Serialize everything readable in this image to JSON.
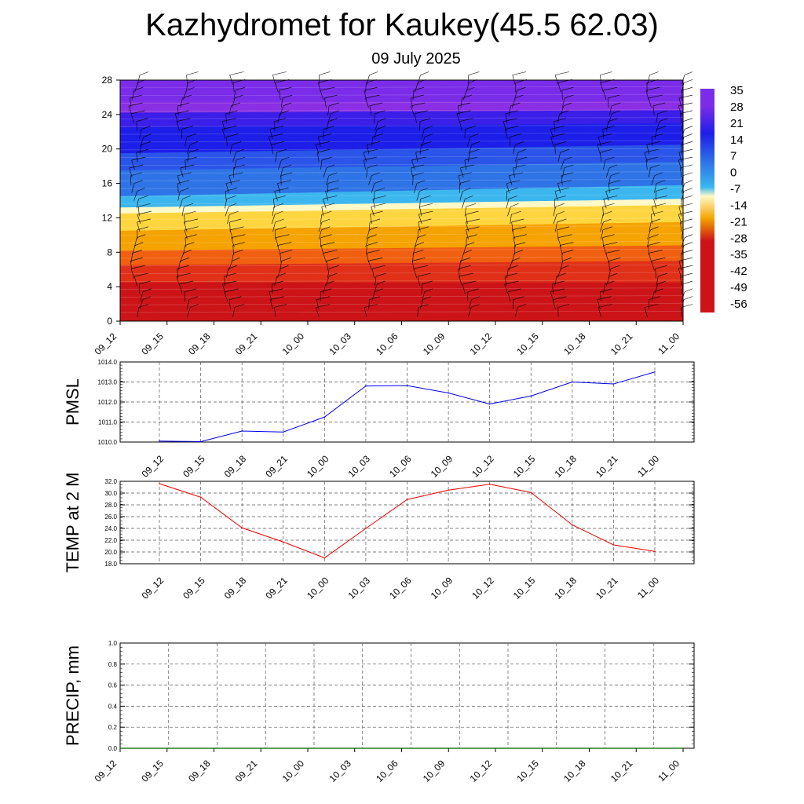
{
  "title": "Kazhydromet for Kaukey(45.5 62.03)",
  "subtitle": "09 July 2025",
  "chart_data": [
    {
      "type": "heatmap",
      "description_role": "vertical cross-section of temperature with wind barbs",
      "x_ticks": [
        "09_12",
        "09_15",
        "09_18",
        "09_21",
        "10_00",
        "10_03",
        "10_06",
        "10_09",
        "10_12",
        "10_15",
        "10_18",
        "10_21",
        "11_00"
      ],
      "y_ticks": [
        0,
        4,
        8,
        12,
        16,
        20,
        24,
        28
      ],
      "ylim": [
        0,
        28
      ],
      "colorbar_labels": [
        "35",
        "28",
        "21",
        "14",
        "7",
        "0",
        "-7",
        "-14",
        "-21",
        "-28",
        "-35",
        "-42",
        "-49",
        "-56"
      ],
      "colors": {
        "hot": "#cc1418",
        "warm": "#f5a300",
        "freeze": "#fff9c8",
        "cold": "#3cb6ee",
        "cool": "#2f74e6",
        "deep": "#1d1ee8",
        "top": "#7a2ce8"
      }
    },
    {
      "type": "line",
      "ylabel": "PMSL",
      "x": [
        "09_12",
        "09_15",
        "09_18",
        "09_21",
        "10_00",
        "10_03",
        "10_06",
        "10_09",
        "10_12",
        "10_15",
        "10_18",
        "10_21",
        "11_00"
      ],
      "values": [
        1010.05,
        1010.02,
        1010.55,
        1010.5,
        1011.25,
        1012.8,
        1012.82,
        1012.45,
        1011.9,
        1012.3,
        1013.0,
        1012.9,
        1013.5
      ],
      "ylim": [
        1010.0,
        1014.0
      ],
      "y_ticks": [
        "1010.0",
        "1011.0",
        "1012.0",
        "1013.0",
        "1014.0"
      ],
      "color": "#0000ee",
      "grid": true
    },
    {
      "type": "line",
      "ylabel": "TEMP at 2 M",
      "x": [
        "09_12",
        "09_15",
        "09_18",
        "09_21",
        "10_00",
        "10_03",
        "10_06",
        "10_09",
        "10_12",
        "10_15",
        "10_18",
        "10_21",
        "11_00"
      ],
      "values": [
        31.6,
        29.3,
        24.1,
        21.7,
        19.0,
        24.0,
        28.9,
        30.5,
        31.5,
        30.1,
        24.6,
        21.2,
        20.1
      ],
      "ylim": [
        18.0,
        32.0
      ],
      "y_ticks": [
        "18.0",
        "20.0",
        "22.0",
        "24.0",
        "26.0",
        "28.0",
        "30.0",
        "32.0"
      ],
      "color": "#ee0000",
      "grid": true
    },
    {
      "type": "line",
      "ylabel": "PRECIP, mm",
      "x": [
        "09_12",
        "09_15",
        "09_18",
        "09_21",
        "10_00",
        "10_03",
        "10_06",
        "10_09",
        "10_12",
        "10_15",
        "10_18",
        "10_21",
        "11_00"
      ],
      "values": [
        0,
        0,
        0,
        0,
        0,
        0,
        0,
        0,
        0,
        0,
        0,
        0,
        0
      ],
      "ylim": [
        0.0,
        1.0
      ],
      "y_ticks": [
        "0.0",
        "0.2",
        "0.4",
        "0.6",
        "0.8",
        "1.0"
      ],
      "color": "#006400",
      "grid": true
    }
  ]
}
